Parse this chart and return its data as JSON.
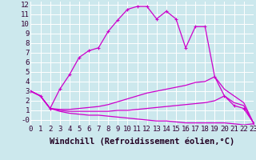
{
  "xlabel": "Windchill (Refroidissement éolien,°C)",
  "background_color": "#cce8ed",
  "grid_color": "#ffffff",
  "line_color": "#cc00cc",
  "xlim": [
    0,
    23
  ],
  "ylim": [
    -0.5,
    12.3
  ],
  "xticks": [
    0,
    1,
    2,
    3,
    4,
    5,
    6,
    7,
    8,
    9,
    10,
    11,
    12,
    13,
    14,
    15,
    16,
    17,
    18,
    19,
    20,
    21,
    22,
    23
  ],
  "yticks": [
    0,
    1,
    2,
    3,
    4,
    5,
    6,
    7,
    8,
    9,
    10,
    11,
    12
  ],
  "ytick_labels": [
    "-0",
    "1",
    "2",
    "3",
    "4",
    "5",
    "6",
    "7",
    "8",
    "9",
    "10",
    "11",
    "12"
  ],
  "line1_x": [
    0,
    1,
    2,
    3,
    4,
    5,
    6,
    7,
    8,
    9,
    10,
    11,
    12,
    13,
    14,
    15,
    16,
    17,
    18,
    19,
    20,
    21,
    22,
    23
  ],
  "line1_y": [
    3.0,
    2.5,
    1.2,
    3.2,
    4.7,
    6.5,
    7.2,
    7.5,
    9.2,
    10.4,
    11.5,
    11.8,
    11.8,
    10.5,
    11.3,
    10.5,
    7.5,
    9.7,
    9.7,
    4.5,
    2.5,
    1.5,
    1.2,
    -0.3
  ],
  "line2_x": [
    0,
    1,
    2,
    3,
    4,
    5,
    6,
    7,
    8,
    9,
    10,
    11,
    12,
    13,
    14,
    15,
    16,
    17,
    18,
    19,
    20,
    21,
    22,
    23
  ],
  "line2_y": [
    3.0,
    2.5,
    1.2,
    1.1,
    1.1,
    1.2,
    1.3,
    1.4,
    1.6,
    1.9,
    2.2,
    2.5,
    2.8,
    3.0,
    3.2,
    3.4,
    3.6,
    3.9,
    4.0,
    4.5,
    3.2,
    2.5,
    1.8,
    -0.3
  ],
  "line3_x": [
    0,
    1,
    2,
    3,
    4,
    5,
    6,
    7,
    8,
    9,
    10,
    11,
    12,
    13,
    14,
    15,
    16,
    17,
    18,
    19,
    20,
    21,
    22,
    23
  ],
  "line3_y": [
    3.0,
    2.5,
    1.2,
    1.0,
    0.9,
    0.9,
    0.9,
    0.9,
    0.9,
    1.0,
    1.0,
    1.1,
    1.2,
    1.3,
    1.4,
    1.5,
    1.6,
    1.7,
    1.8,
    2.0,
    2.5,
    1.8,
    1.5,
    -0.3
  ],
  "line4_x": [
    0,
    1,
    2,
    3,
    4,
    5,
    6,
    7,
    8,
    9,
    10,
    11,
    12,
    13,
    14,
    15,
    16,
    17,
    18,
    19,
    20,
    21,
    22,
    23
  ],
  "line4_y": [
    3.0,
    2.5,
    1.2,
    0.9,
    0.7,
    0.6,
    0.5,
    0.5,
    0.4,
    0.3,
    0.2,
    0.1,
    0.0,
    -0.1,
    -0.1,
    -0.2,
    -0.3,
    -0.3,
    -0.3,
    -0.3,
    -0.3,
    -0.4,
    -0.5,
    -0.4
  ],
  "tick_fontsize": 6.5,
  "xlabel_fontsize": 7.5,
  "marker_size": 3
}
